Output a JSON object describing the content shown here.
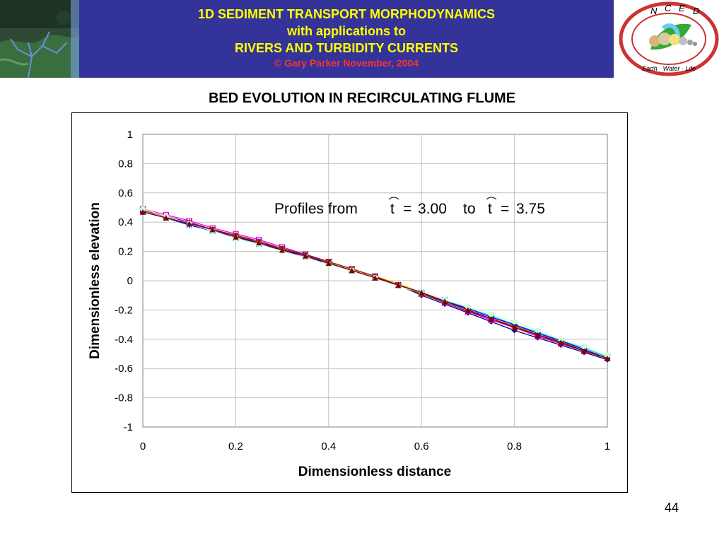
{
  "header": {
    "line1": "1D SEDIMENT TRANSPORT MORPHODYNAMICS",
    "line2": "with applications to",
    "line3": "RIVERS AND TURBIDITY CURRENTS",
    "copyright": "© Gary Parker November, 2004",
    "logo_letters": [
      "N",
      "C",
      "E",
      "D"
    ],
    "logo_motto": "Earth · Water · Life",
    "colors": {
      "banner": "#333399",
      "title_text": "#ffff00",
      "copyright_text": "#ff3333"
    }
  },
  "slide_title": "BED EVOLUTION IN RECIRCULATING FLUME",
  "page_number": "44",
  "chart_data": {
    "type": "line",
    "title": "",
    "xlabel": "Dimensionless distance",
    "ylabel": "Dimensionless elevation",
    "xlim": [
      0,
      1
    ],
    "ylim": [
      -1,
      1
    ],
    "xticks": [
      "0",
      "0.2",
      "0.4",
      "0.6",
      "0.8",
      "1"
    ],
    "yticks": [
      "1",
      "0.8",
      "0.6",
      "0.4",
      "0.2",
      "0",
      "-0.2",
      "-0.4",
      "-0.6",
      "-0.8",
      "-1"
    ],
    "grid": true,
    "legend": "none",
    "annotation": {
      "prefix": "Profiles from",
      "t_symbol": "t",
      "eq": "=",
      "from_value": "3.00",
      "to_word": "to",
      "to_value": "3.75"
    },
    "x": [
      0,
      0.05,
      0.1,
      0.15,
      0.2,
      0.25,
      0.3,
      0.35,
      0.4,
      0.45,
      0.5,
      0.55,
      0.6,
      0.65,
      0.7,
      0.75,
      0.8,
      0.85,
      0.9,
      0.95,
      1.0
    ],
    "series": [
      {
        "color": "#000080",
        "marker": "diamond",
        "values": [
          0.47,
          0.43,
          0.39,
          0.34,
          0.3,
          0.26,
          0.22,
          0.17,
          0.13,
          0.08,
          0.03,
          -0.03,
          -0.1,
          -0.16,
          -0.22,
          -0.28,
          -0.34,
          -0.39,
          -0.44,
          -0.49,
          -0.54
        ]
      },
      {
        "color": "#ff00ff",
        "marker": "square",
        "values": [
          0.49,
          0.45,
          0.41,
          0.36,
          0.32,
          0.28,
          0.23,
          0.18,
          0.13,
          0.08,
          0.03,
          -0.03,
          -0.09,
          -0.15,
          -0.21,
          -0.27,
          -0.32,
          -0.38,
          -0.43,
          -0.48,
          -0.53
        ]
      },
      {
        "color": "#ffcc00",
        "marker": "triangle",
        "values": [
          0.48,
          0.44,
          0.4,
          0.35,
          0.31,
          0.27,
          0.22,
          0.18,
          0.13,
          0.08,
          0.03,
          -0.02,
          -0.08,
          -0.14,
          -0.2,
          -0.26,
          -0.31,
          -0.36,
          -0.42,
          -0.47,
          -0.52
        ]
      },
      {
        "color": "#00ccff",
        "marker": "x",
        "values": [
          0.47,
          0.43,
          0.38,
          0.34,
          0.29,
          0.25,
          0.21,
          0.16,
          0.12,
          0.07,
          0.02,
          -0.03,
          -0.08,
          -0.13,
          -0.19,
          -0.24,
          -0.3,
          -0.35,
          -0.41,
          -0.46,
          -0.52
        ]
      },
      {
        "color": "#800080",
        "marker": "star",
        "values": [
          0.48,
          0.44,
          0.4,
          0.35,
          0.31,
          0.27,
          0.22,
          0.18,
          0.13,
          0.08,
          0.03,
          -0.03,
          -0.09,
          -0.15,
          -0.21,
          -0.26,
          -0.32,
          -0.37,
          -0.43,
          -0.48,
          -0.53
        ]
      },
      {
        "color": "#993300",
        "marker": "circle",
        "values": [
          0.48,
          0.44,
          0.39,
          0.35,
          0.31,
          0.26,
          0.22,
          0.17,
          0.13,
          0.08,
          0.03,
          -0.03,
          -0.09,
          -0.14,
          -0.2,
          -0.26,
          -0.31,
          -0.37,
          -0.42,
          -0.48,
          -0.53
        ]
      },
      {
        "color": "#0000ff",
        "marker": "plus",
        "values": [
          0.47,
          0.43,
          0.38,
          0.34,
          0.3,
          0.25,
          0.21,
          0.16,
          0.12,
          0.07,
          0.02,
          -0.03,
          -0.08,
          -0.14,
          -0.19,
          -0.25,
          -0.3,
          -0.36,
          -0.41,
          -0.47,
          -0.53
        ]
      },
      {
        "color": "#ccffcc",
        "marker": "circle",
        "values": [
          0.49,
          0.44,
          0.39,
          0.34,
          0.29,
          0.25,
          0.2,
          0.16,
          0.11,
          0.07,
          0.02,
          -0.04,
          -0.08,
          -0.13,
          -0.18,
          -0.23,
          -0.28,
          -0.34,
          -0.4,
          -0.45,
          -0.51
        ]
      },
      {
        "color": "#800000",
        "marker": "triangle",
        "values": [
          0.47,
          0.43,
          0.39,
          0.35,
          0.3,
          0.26,
          0.21,
          0.17,
          0.12,
          0.07,
          0.02,
          -0.03,
          -0.08,
          -0.14,
          -0.2,
          -0.26,
          -0.32,
          -0.37,
          -0.42,
          -0.48,
          -0.53
        ]
      }
    ]
  }
}
